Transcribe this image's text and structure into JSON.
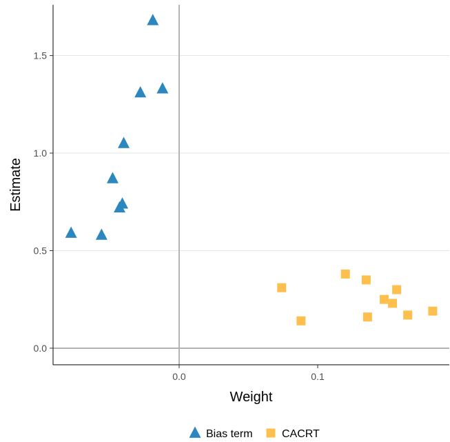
{
  "chart_data": {
    "type": "scatter",
    "title": "",
    "xlabel": "Weight",
    "ylabel": "Estimate",
    "xlim": [
      -0.091,
      0.195
    ],
    "ylim": [
      -0.085,
      1.76
    ],
    "x_ticks": [
      0.0,
      0.1
    ],
    "x_tick_labels": [
      "0.0",
      "0.1"
    ],
    "y_ticks": [
      0.0,
      0.5,
      1.0,
      1.5
    ],
    "y_tick_labels": [
      "0.0",
      "0.5",
      "1.0",
      "1.5"
    ],
    "reference_lines": {
      "x": 0,
      "y": 0
    },
    "grid": "horizontal major",
    "legend_position": "bottom",
    "series": [
      {
        "name": "Bias term",
        "marker": "triangle",
        "color": "#2c87bf",
        "points": [
          {
            "x": -0.019,
            "y": 1.68
          },
          {
            "x": -0.012,
            "y": 1.33
          },
          {
            "x": -0.028,
            "y": 1.31
          },
          {
            "x": -0.04,
            "y": 1.05
          },
          {
            "x": -0.048,
            "y": 0.87
          },
          {
            "x": -0.041,
            "y": 0.74
          },
          {
            "x": -0.043,
            "y": 0.72
          },
          {
            "x": -0.078,
            "y": 0.59
          },
          {
            "x": -0.056,
            "y": 0.58
          }
        ]
      },
      {
        "name": "CACRT",
        "marker": "square",
        "color": "#fdc04f",
        "points": [
          {
            "x": 0.074,
            "y": 0.31
          },
          {
            "x": 0.088,
            "y": 0.14
          },
          {
            "x": 0.12,
            "y": 0.38
          },
          {
            "x": 0.135,
            "y": 0.35
          },
          {
            "x": 0.136,
            "y": 0.16
          },
          {
            "x": 0.148,
            "y": 0.25
          },
          {
            "x": 0.154,
            "y": 0.23
          },
          {
            "x": 0.157,
            "y": 0.3
          },
          {
            "x": 0.165,
            "y": 0.17
          },
          {
            "x": 0.183,
            "y": 0.19
          }
        ]
      }
    ]
  }
}
